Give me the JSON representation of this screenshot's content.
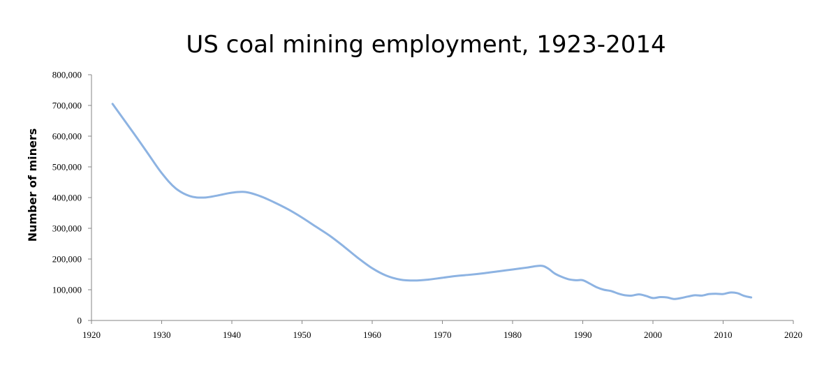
{
  "chart_data": {
    "type": "line",
    "title": "US coal mining employment, 1923-2014",
    "xlabel": "",
    "ylabel": "Number of miners",
    "xlim": [
      1920,
      2020
    ],
    "ylim": [
      0,
      800000
    ],
    "x_ticks": [
      "1920",
      "1930",
      "1940",
      "1950",
      "1960",
      "1970",
      "1980",
      "1990",
      "2000",
      "2010",
      "2020"
    ],
    "y_ticks": [
      "0",
      "100,000",
      "200,000",
      "300,000",
      "400,000",
      "500,000",
      "600,000",
      "700,000",
      "800,000"
    ],
    "grid": false,
    "legend": "none",
    "series": [
      {
        "color": "#8db3e2",
        "x": [
          1923,
          1926,
          1928,
          1930,
          1932,
          1934,
          1936,
          1938,
          1940,
          1942,
          1944,
          1946,
          1948,
          1950,
          1952,
          1954,
          1956,
          1958,
          1960,
          1962,
          1964,
          1966,
          1968,
          1970,
          1972,
          1974,
          1976,
          1978,
          1980,
          1982,
          1984,
          1985,
          1986,
          1987,
          1988,
          1989,
          1990,
          1991,
          1992,
          1993,
          1994,
          1995,
          1996,
          1997,
          1998,
          1999,
          2000,
          2001,
          2002,
          2003,
          2004,
          2005,
          2006,
          2007,
          2008,
          2009,
          2010,
          2011,
          2012,
          2013,
          2014
        ],
        "values": [
          705000,
          610000,
          545000,
          480000,
          430000,
          405000,
          400000,
          407000,
          416000,
          418000,
          405000,
          385000,
          362000,
          335000,
          305000,
          275000,
          240000,
          203000,
          170000,
          146000,
          133000,
          130000,
          133000,
          139000,
          145000,
          149000,
          154000,
          160000,
          166000,
          172000,
          178000,
          170000,
          153000,
          142000,
          134000,
          131000,
          131000,
          120000,
          108000,
          100000,
          96000,
          88000,
          82000,
          81000,
          85000,
          80000,
          73000,
          76000,
          75000,
          70000,
          73000,
          78000,
          82000,
          81000,
          86000,
          87000,
          86000,
          91000,
          89000,
          80000,
          75000
        ]
      }
    ]
  }
}
